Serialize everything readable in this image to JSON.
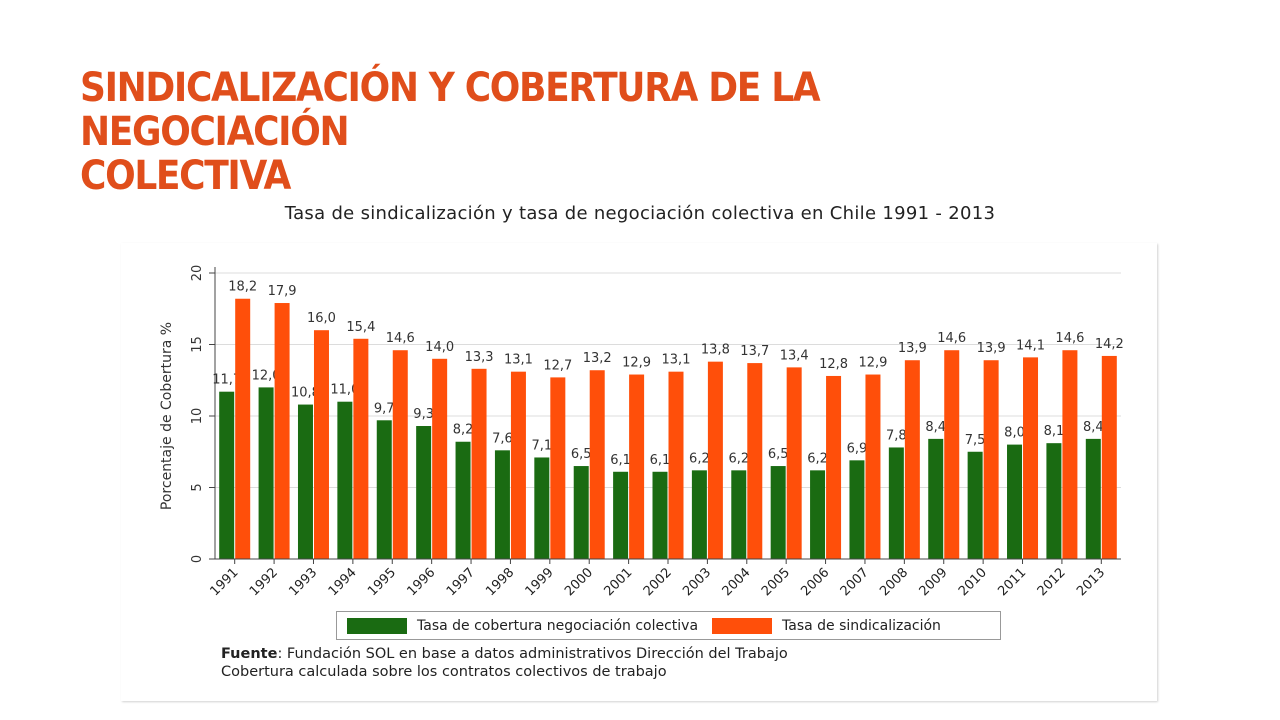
{
  "slide": {
    "title_line1": "SINDICALIZACIÓN Y COBERTURA DE LA NEGOCIACIÓN",
    "title_line2": "COLECTIVA",
    "chart_heading": "Tasa de sindicalización y tasa de negociación colectiva en Chile 1991 - 2013"
  },
  "colors": {
    "title": "#e04e1b",
    "green": "#1a6b12",
    "orange": "#ff4f0a"
  },
  "chart_data": {
    "type": "bar",
    "ylabel": "Porcentaje de Cobertura %",
    "ylim": [
      0,
      20
    ],
    "yticks": [
      "0",
      "5",
      "10",
      "15",
      "20"
    ],
    "grid": true,
    "categories": [
      "1991",
      "1992",
      "1993",
      "1994",
      "1995",
      "1996",
      "1997",
      "1998",
      "1999",
      "2000",
      "2001",
      "2002",
      "2003",
      "2004",
      "2005",
      "2006",
      "2007",
      "2008",
      "2009",
      "2010",
      "2011",
      "2012",
      "2013"
    ],
    "series": [
      {
        "name": "Tasa de cobertura negociación colectiva",
        "color": "#1a6b12",
        "values": [
          11.7,
          12.0,
          10.8,
          11.0,
          9.7,
          9.3,
          8.2,
          7.6,
          7.1,
          6.5,
          6.1,
          6.1,
          6.2,
          6.2,
          6.5,
          6.2,
          6.9,
          7.8,
          8.4,
          7.5,
          8.0,
          8.1,
          8.4
        ],
        "labels": [
          "11,7",
          "12,0",
          "10,8",
          "11,0",
          "9,7",
          "9,3",
          "8,2",
          "7,6",
          "7,1",
          "6,5",
          "6,1",
          "6,1",
          "6,2",
          "6,2",
          "6,5",
          "6,2",
          "6,9",
          "7,8",
          "8,4",
          "7,5",
          "8,0",
          "8,1",
          "8,4"
        ]
      },
      {
        "name": "Tasa de sindicalización",
        "color": "#ff4f0a",
        "values": [
          18.2,
          17.9,
          16.0,
          15.4,
          14.6,
          14.0,
          13.3,
          13.1,
          12.7,
          13.2,
          12.9,
          13.1,
          13.8,
          13.7,
          13.4,
          12.8,
          12.9,
          13.9,
          14.6,
          13.9,
          14.1,
          14.6,
          14.2
        ],
        "labels": [
          "18,2",
          "17,9",
          "16,0",
          "15,4",
          "14,6",
          "14,0",
          "13,3",
          "13,1",
          "12,7",
          "13,2",
          "12,9",
          "13,1",
          "13,8",
          "13,7",
          "13,4",
          "12,8",
          "12,9",
          "13,9",
          "14,6",
          "13,9",
          "14,1",
          "14,6",
          "14,2"
        ]
      }
    ],
    "legend_placement": "bottom",
    "source_label": "Fuente",
    "source_line1": ": Fundación SOL en base a datos administrativos Dirección del Trabajo",
    "source_line2": "Cobertura calculada sobre los contratos colectivos de trabajo"
  }
}
